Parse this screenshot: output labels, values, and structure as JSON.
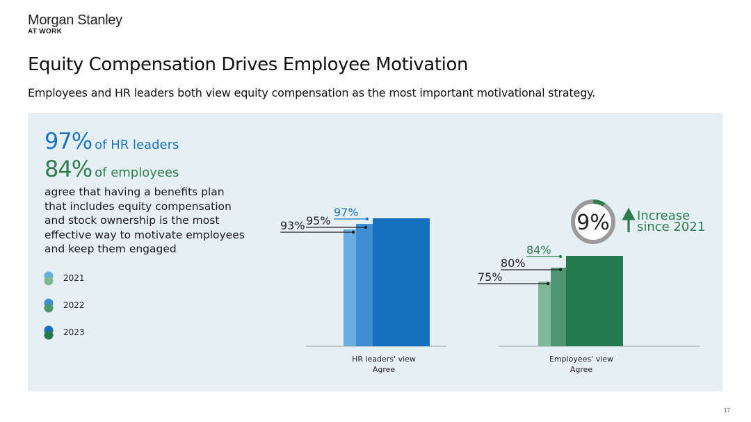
{
  "header": {
    "brand": "Morgan Stanley",
    "brand_sub": "AT WORK",
    "title": "Equity Compensation Drives Employee Motivation",
    "subtitle": "Employees and HR leaders both view equity compensation as the most important motivational strategy."
  },
  "callout": {
    "hr_pct": "97%",
    "hr_text": "of HR leaders",
    "emp_pct": "84%",
    "emp_text": "of employees",
    "description": "agree that having a benefits plan that includes equity compensation and stock ownership is the most effective way to motivate employees and keep them engaged"
  },
  "legend": [
    {
      "label": "2021"
    },
    {
      "label": "2022"
    },
    {
      "label": "2023"
    }
  ],
  "colors": {
    "hr": [
      "#6aaee0",
      "#3d8fd1",
      "#1670c0"
    ],
    "emp": [
      "#7fb896",
      "#4e9672",
      "#237a4f"
    ],
    "hr_accent": "#1b75c4",
    "emp_accent": "#2e7d4f",
    "ring": "#9a9a9a"
  },
  "growth": {
    "value": "9%",
    "label_line1": "Increase",
    "label_line2": "since 2021"
  },
  "chart_data": [
    {
      "type": "bar",
      "group": "HR leaders",
      "xlabel_line1": "HR leaders' view",
      "xlabel_line2": "Agree",
      "categories": [
        "2021",
        "2022",
        "2023"
      ],
      "values": [
        93,
        95,
        97
      ],
      "labels": [
        "93%",
        "95%",
        "97%"
      ]
    },
    {
      "type": "bar",
      "group": "Employees",
      "xlabel_line1": "Employees' view",
      "xlabel_line2": "Agree",
      "categories": [
        "2021",
        "2022",
        "2023"
      ],
      "values": [
        75,
        80,
        84
      ],
      "labels": [
        "75%",
        "80%",
        "84%"
      ]
    }
  ],
  "page_number": "17"
}
